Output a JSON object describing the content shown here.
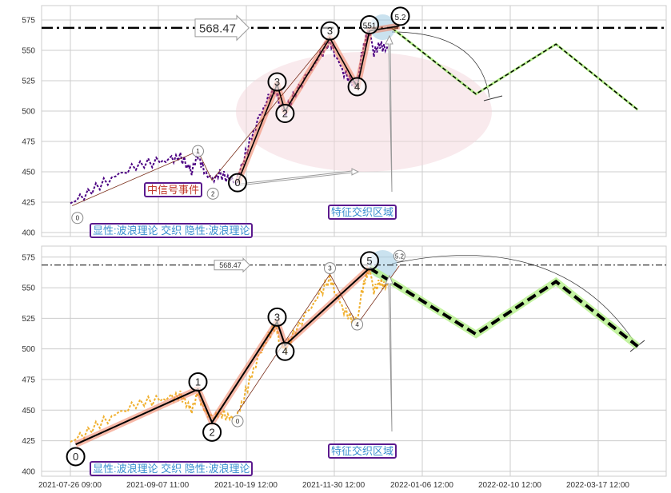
{
  "chart_data": {
    "type": "line",
    "x_tick_labels": [
      "2021-07-26 09:00",
      "2021-09-07 11:00",
      "2021-10-19 12:00",
      "2021-11-30 12:00",
      "2022-01-06 12:00",
      "2022-02-10 12:00",
      "2022-03-17 12:00"
    ],
    "y_ticks": [
      400,
      425,
      450,
      475,
      500,
      525,
      550,
      575
    ],
    "grid": true,
    "price_points": [
      [
        0,
        424
      ],
      [
        0.11,
        428
      ],
      [
        0.29,
        437
      ],
      [
        0.47,
        445
      ],
      [
        0.65,
        452
      ],
      [
        0.84,
        457
      ],
      [
        1.02,
        458
      ],
      [
        1.15,
        460
      ],
      [
        1.25,
        462
      ],
      [
        1.34,
        455
      ],
      [
        1.38,
        450
      ],
      [
        1.45,
        465
      ],
      [
        1.52,
        450
      ],
      [
        1.61,
        443
      ],
      [
        1.7,
        448
      ],
      [
        1.79,
        445
      ],
      [
        1.88,
        442
      ],
      [
        1.97,
        460
      ],
      [
        2.06,
        478
      ],
      [
        2.15,
        495
      ],
      [
        2.25,
        510
      ],
      [
        2.34,
        520
      ],
      [
        2.38,
        505
      ],
      [
        2.45,
        500
      ],
      [
        2.56,
        515
      ],
      [
        2.7,
        530
      ],
      [
        2.84,
        545
      ],
      [
        2.95,
        558
      ],
      [
        3.02,
        545
      ],
      [
        3.11,
        532
      ],
      [
        3.2,
        524
      ],
      [
        3.26,
        522
      ],
      [
        3.31,
        545
      ],
      [
        3.36,
        560
      ],
      [
        3.4,
        566
      ],
      [
        3.45,
        548
      ],
      [
        3.52,
        555
      ],
      [
        3.58,
        550
      ],
      [
        3.61,
        553
      ]
    ],
    "panels": [
      {
        "name": "top",
        "series_color": "#4b0082",
        "ylim": [
          396.7,
          586.8
        ],
        "hline": 568.47,
        "hline_label": "568.47",
        "waves": [
          {
            "label": "0",
            "x": 0.08,
            "y": 412,
            "size": "small"
          },
          {
            "label": "1",
            "x": 1.45,
            "y": 467,
            "size": "small"
          },
          {
            "label": "2",
            "x": 1.62,
            "y": 432,
            "size": "small"
          },
          {
            "label": "0",
            "x": 1.9,
            "y": 441,
            "size": "big"
          },
          {
            "label": "3",
            "x": 2.35,
            "y": 524,
            "size": "big"
          },
          {
            "label": "2",
            "x": 2.44,
            "y": 498,
            "size": "big"
          },
          {
            "label": "3",
            "x": 2.95,
            "y": 566,
            "size": "big"
          },
          {
            "label": "4",
            "x": 3.26,
            "y": 520,
            "size": "big"
          },
          {
            "label": "551",
            "x": 3.4,
            "y": 571,
            "size": "big"
          },
          {
            "label": "5.2",
            "x": 3.75,
            "y": 578,
            "size": "big"
          }
        ],
        "wave_path": [
          [
            1.9,
            441
          ],
          [
            2.35,
            522
          ],
          [
            2.44,
            500
          ],
          [
            2.95,
            560
          ],
          [
            3.26,
            520
          ],
          [
            3.4,
            566
          ],
          [
            3.74,
            570
          ]
        ],
        "thin_path": [
          [
            0.02,
            422
          ],
          [
            1.45,
            467
          ],
          [
            1.61,
            443
          ],
          [
            2.95,
            561
          ]
        ],
        "projection": [
          [
            3.66,
            568
          ],
          [
            4.61,
            514
          ],
          [
            5.52,
            555
          ],
          [
            6.45,
            501
          ]
        ],
        "annotations": {
          "legend": "显性:波浪理论 交织 隐性:波浪理论",
          "signal": "中信号事件",
          "zone": "特征交织区域"
        }
      },
      {
        "name": "bottom",
        "series_color": "#f0b030",
        "ylim": [
          396,
          584
        ],
        "hline": 568.47,
        "hline_label": "568.47",
        "waves": [
          {
            "label": "0",
            "x": 0.06,
            "y": 412,
            "size": "big"
          },
          {
            "label": "1",
            "x": 1.45,
            "y": 473,
            "size": "big"
          },
          {
            "label": "2",
            "x": 1.61,
            "y": 432,
            "size": "big"
          },
          {
            "label": "0",
            "x": 1.9,
            "y": 441,
            "size": "small"
          },
          {
            "label": "3",
            "x": 2.35,
            "y": 526,
            "size": "big"
          },
          {
            "label": "4",
            "x": 2.44,
            "y": 498,
            "size": "big"
          },
          {
            "label": "3",
            "x": 2.95,
            "y": 566,
            "size": "small"
          },
          {
            "label": "4",
            "x": 3.26,
            "y": 520,
            "size": "small"
          },
          {
            "label": "5",
            "x": 3.4,
            "y": 572,
            "size": "big"
          },
          {
            "label": "5.2",
            "x": 3.74,
            "y": 576,
            "size": "small"
          }
        ],
        "wave_path": [
          [
            0.06,
            422
          ],
          [
            1.45,
            467
          ],
          [
            1.61,
            440
          ],
          [
            2.35,
            522
          ],
          [
            2.44,
            503
          ],
          [
            3.4,
            566
          ]
        ],
        "thin_path": [
          [
            1.9,
            448
          ],
          [
            2.95,
            561
          ],
          [
            3.26,
            520
          ],
          [
            3.74,
            568
          ]
        ],
        "projection": [
          [
            3.4,
            566
          ],
          [
            4.61,
            512
          ],
          [
            5.52,
            555
          ],
          [
            6.45,
            502
          ]
        ],
        "annotations": {
          "legend": "显性:波浪理论 交织 隐性:波浪理论",
          "zone": "特征交织区域"
        }
      }
    ]
  }
}
